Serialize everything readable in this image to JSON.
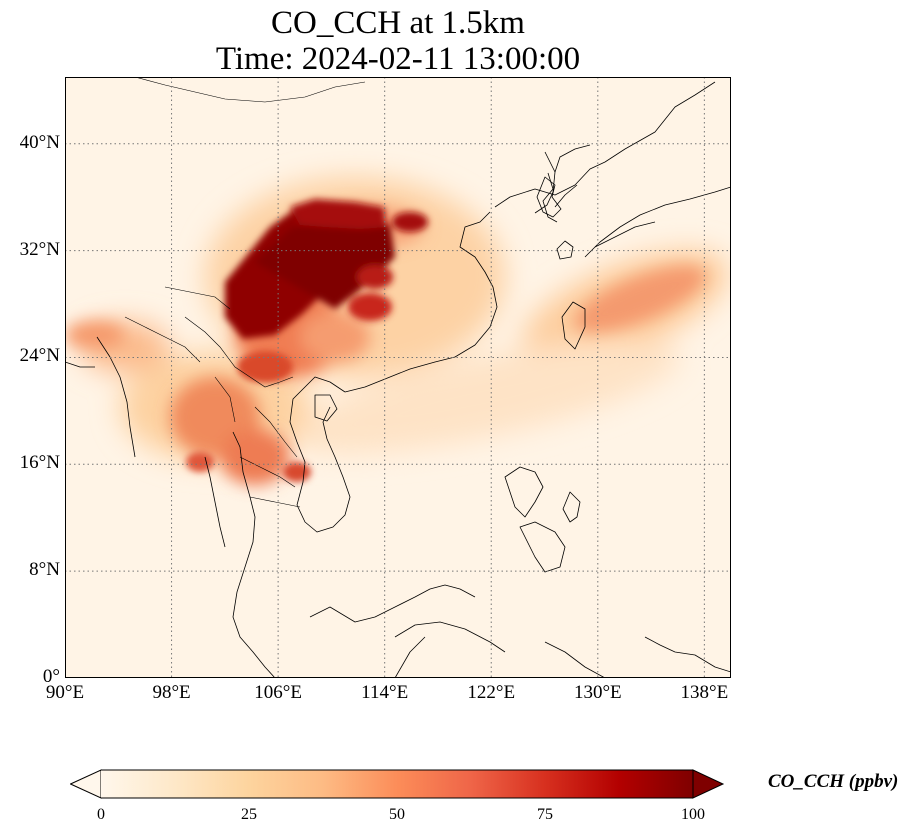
{
  "title": {
    "line1": "CO_CCH at 1.5km",
    "line2": "Time: 2024-02-11 13:00:00"
  },
  "map": {
    "variable": "CO_CCH",
    "height": "1.5km",
    "time": "2024-02-11 13:00:00",
    "lon_range": [
      90,
      140
    ],
    "lat_range": [
      0,
      45
    ],
    "lon_ticks": [
      "90°E",
      "98°E",
      "106°E",
      "114°E",
      "122°E",
      "130°E",
      "138°E"
    ],
    "lat_ticks": [
      "0°",
      "8°N",
      "16°N",
      "24°N",
      "32°N",
      "40°N"
    ],
    "gridlines": true,
    "colormap": "OrRd"
  },
  "colorbar": {
    "label": "CO_CCH (ppbv)",
    "ticks": [
      "0",
      "25",
      "50",
      "75",
      "100"
    ],
    "min": 0,
    "max": 100,
    "extend": "both",
    "colors": [
      "#fff7ec",
      "#fee8c8",
      "#fdd49e",
      "#fdbb84",
      "#fc8d59",
      "#ef6548",
      "#d7301f",
      "#b30000",
      "#7f0000"
    ]
  }
}
